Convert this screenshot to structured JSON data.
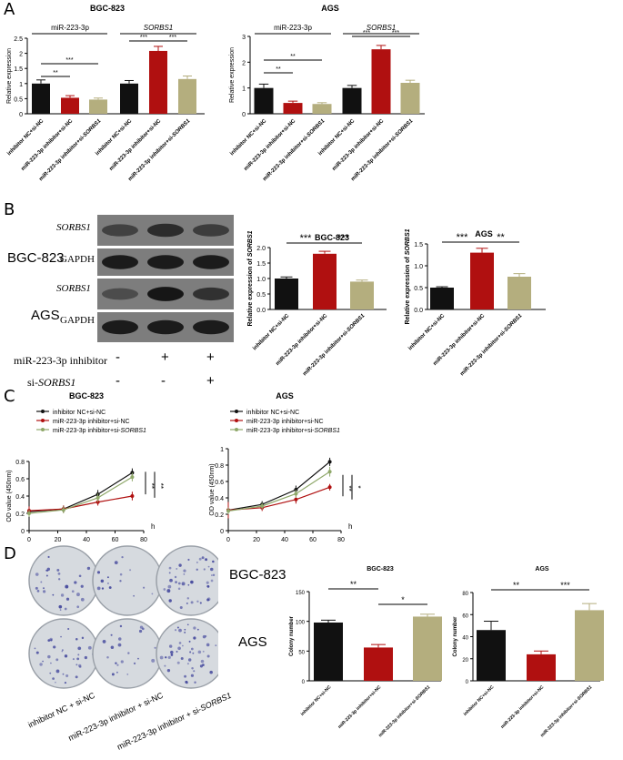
{
  "panels": {
    "a": "A",
    "b": "B",
    "c": "C",
    "d": "D"
  },
  "colors": {
    "black": "#111111",
    "red": "#b01010",
    "tan": "#b4ae7e",
    "green": "#8fa86a",
    "blot_bg": "#7d7d7d"
  },
  "panel_a": {
    "bgc_title": "BGC-823",
    "ags_title": "AGS",
    "group_mir": "miR-223-3p",
    "group_sorbs": "SORBS1",
    "ylabel": "Relative expression",
    "xlabels": [
      "inhibitor NC+si-NC",
      "miR-223-3p inhibitor+si-NC",
      "miR-223-3p inhibitor+si-",
      "inhibitor NC+si-NC",
      "miR-223-3p inhibitor+si-NC",
      "miR-223-3p inhibitor+si-"
    ],
    "xlabel_italic": "SORBS1"
  },
  "panel_b": {
    "cell_bgc": "BGC-823",
    "cell_ags": "AGS",
    "blot_labels": [
      "SORBS1",
      "GAPDH",
      "SORBS1",
      "GAPDH"
    ],
    "treat_1": "miR-223-3p inhibitor",
    "treat_2_prefix": "si-",
    "treat_2_italic": "SORBS1",
    "row1_signs": [
      "-",
      "+",
      "+"
    ],
    "row2_signs": [
      "-",
      "-",
      "+"
    ],
    "xlabels": [
      "inhibitor NC+si-NC",
      "miR-223-3p inhibitor+si-NC",
      "miR-223-3p inhibitor+si-"
    ],
    "xlabel_italic": "SORBS1",
    "ylabel_prefix": "Relative expression of ",
    "ylabel_italic": "SORBS1",
    "bgc_title": "BGC-823",
    "ags_title": "AGS"
  },
  "panel_c": {
    "bgc_title": "BGC-823",
    "ags_title": "AGS",
    "ylabel": "OD value (450nm)",
    "xunit": "h",
    "legend": [
      "inhibitor NC+si-NC",
      "miR-223-3p inhibitor+si-NC",
      "miR-223-3p inhibitor+si-"
    ],
    "legend_italic": "SORBS1"
  },
  "panel_d": {
    "cell_bgc": "BGC-823",
    "cell_ags": "AGS",
    "plate_labels": [
      "inhibitor NC + si-NC",
      "miR-223-3p inhibitor + si-NC",
      "miR-223-3p inhibitor + si-"
    ],
    "plate_label_italic": "SORBS1",
    "ylabel": "Colony number",
    "xlabels": [
      "inhibitor NC+si-NC",
      "miR-223-3p inhibitor+si-NC",
      "miR-223-3p inhibitor+si-"
    ],
    "xlabel_italic": "SORBS1",
    "bgc_title": "BGC-823",
    "ags_title": "AGS"
  },
  "chart_data": [
    {
      "id": "a_bgc",
      "type": "bar",
      "title": "BGC-823",
      "ylabel": "Relative expression",
      "ylim": [
        0,
        2.5
      ],
      "yticks": [
        0,
        0.5,
        1,
        1.5,
        2,
        2.5
      ],
      "values": [
        1.0,
        0.53,
        0.47,
        1.0,
        2.08,
        1.15
      ],
      "errors": [
        0.12,
        0.07,
        0.05,
        0.1,
        0.15,
        0.1
      ],
      "colors": [
        "#111111",
        "#b01010",
        "#b4ae7e",
        "#111111",
        "#b01010",
        "#b4ae7e"
      ],
      "sig": [
        {
          "from": 0,
          "to": 1,
          "label": "**"
        },
        {
          "from": 0,
          "to": 2,
          "label": "***"
        },
        {
          "from": 3,
          "to": 4,
          "label": "***"
        },
        {
          "from": 4,
          "to": 5,
          "label": "***"
        }
      ]
    },
    {
      "id": "a_ags",
      "type": "bar",
      "title": "AGS",
      "ylabel": "Relative expression",
      "ylim": [
        0,
        3
      ],
      "yticks": [
        0,
        1,
        2,
        3
      ],
      "values": [
        1.0,
        0.42,
        0.38,
        1.0,
        2.5,
        1.2
      ],
      "errors": [
        0.15,
        0.07,
        0.05,
        0.1,
        0.15,
        0.1
      ],
      "colors": [
        "#111111",
        "#b01010",
        "#b4ae7e",
        "#111111",
        "#b01010",
        "#b4ae7e"
      ],
      "sig": [
        {
          "from": 0,
          "to": 1,
          "label": "**"
        },
        {
          "from": 0,
          "to": 2,
          "label": "**"
        },
        {
          "from": 3,
          "to": 4,
          "label": "***"
        },
        {
          "from": 4,
          "to": 5,
          "label": "***"
        }
      ]
    },
    {
      "id": "b_bgc",
      "type": "bar",
      "title": "BGC-823",
      "ylabel": "Relative expression of SORBS1",
      "ylim": [
        0,
        2.0
      ],
      "yticks": [
        0.0,
        0.5,
        1.0,
        1.5,
        2.0
      ],
      "values": [
        1.0,
        1.8,
        0.9
      ],
      "errors": [
        0.05,
        0.08,
        0.05
      ],
      "colors": [
        "#111111",
        "#b01010",
        "#b4ae7e"
      ],
      "sig": [
        {
          "from": 0,
          "to": 1,
          "label": "***"
        },
        {
          "from": 1,
          "to": 2,
          "label": "***"
        }
      ]
    },
    {
      "id": "b_ags",
      "type": "bar",
      "title": "AGS",
      "ylabel": "Relative expression of SORBS1",
      "ylim": [
        0,
        1.5
      ],
      "yticks": [
        0.0,
        0.5,
        1.0,
        1.5
      ],
      "values": [
        0.5,
        1.3,
        0.75
      ],
      "errors": [
        0.02,
        0.1,
        0.07
      ],
      "colors": [
        "#111111",
        "#b01010",
        "#b4ae7e"
      ],
      "sig": [
        {
          "from": 0,
          "to": 1,
          "label": "***"
        },
        {
          "from": 1,
          "to": 2,
          "label": "**"
        }
      ]
    },
    {
      "id": "c_bgc",
      "type": "line",
      "title": "BGC-823",
      "ylabel": "OD value (450nm)",
      "xlim": [
        0,
        80
      ],
      "ylim": [
        0,
        0.8
      ],
      "xticks": [
        0,
        20,
        40,
        60,
        80
      ],
      "yticks": [
        0,
        0.2,
        0.4,
        0.6,
        0.8
      ],
      "x": [
        0,
        24,
        48,
        72
      ],
      "series": [
        {
          "name": "inhibitor NC+si-NC",
          "color": "#111111",
          "values": [
            0.22,
            0.25,
            0.42,
            0.67
          ],
          "errors": [
            0.04,
            0.04,
            0.05,
            0.05
          ]
        },
        {
          "name": "miR-223-3p inhibitor+si-NC",
          "color": "#b01010",
          "values": [
            0.23,
            0.25,
            0.33,
            0.4
          ],
          "errors": [
            0.05,
            0.04,
            0.04,
            0.05
          ]
        },
        {
          "name": "miR-223-3p inhibitor+si-SORBS1",
          "color": "#8fa86a",
          "values": [
            0.2,
            0.24,
            0.38,
            0.62
          ],
          "errors": [
            0.04,
            0.04,
            0.05,
            0.05
          ]
        }
      ],
      "sig": [
        "**",
        "**"
      ]
    },
    {
      "id": "c_ags",
      "type": "line",
      "title": "AGS",
      "ylabel": "OD value (450nm)",
      "xlim": [
        0,
        80
      ],
      "ylim": [
        0,
        1.0
      ],
      "xticks": [
        0,
        20,
        40,
        60,
        80
      ],
      "yticks": [
        0,
        0.2,
        0.4,
        0.6,
        0.8,
        1.0
      ],
      "x": [
        0,
        24,
        48,
        72
      ],
      "series": [
        {
          "name": "inhibitor NC+si-NC",
          "color": "#111111",
          "values": [
            0.25,
            0.32,
            0.5,
            0.84
          ],
          "errors": [
            0.04,
            0.04,
            0.05,
            0.05
          ]
        },
        {
          "name": "miR-223-3p inhibitor+si-NC",
          "color": "#b01010",
          "values": [
            0.25,
            0.28,
            0.38,
            0.53
          ],
          "errors": [
            0.1,
            0.04,
            0.05,
            0.04
          ]
        },
        {
          "name": "miR-223-3p inhibitor+si-SORBS1",
          "color": "#8fa86a",
          "values": [
            0.24,
            0.3,
            0.45,
            0.72
          ],
          "errors": [
            0.04,
            0.04,
            0.05,
            0.06
          ]
        }
      ],
      "sig": [
        "**",
        "*"
      ]
    },
    {
      "id": "d_bgc",
      "type": "bar",
      "title": "BGC-823",
      "ylabel": "Colony number",
      "ylim": [
        0,
        150
      ],
      "yticks": [
        0,
        50,
        100,
        150
      ],
      "values": [
        98,
        56,
        108
      ],
      "errors": [
        4,
        5,
        4
      ],
      "colors": [
        "#111111",
        "#b01010",
        "#b4ae7e"
      ],
      "sig": [
        {
          "from": 0,
          "to": 1,
          "label": "**"
        },
        {
          "from": 1,
          "to": 2,
          "label": "*"
        }
      ]
    },
    {
      "id": "d_ags",
      "type": "bar",
      "title": "AGS",
      "ylabel": "Colony number",
      "ylim": [
        0,
        80
      ],
      "yticks": [
        0,
        20,
        40,
        60,
        80
      ],
      "values": [
        46,
        24,
        64
      ],
      "errors": [
        8,
        3,
        6
      ],
      "colors": [
        "#111111",
        "#b01010",
        "#b4ae7e"
      ],
      "sig": [
        {
          "from": 0,
          "to": 1,
          "label": "**"
        },
        {
          "from": 1,
          "to": 2,
          "label": "***"
        }
      ]
    }
  ]
}
